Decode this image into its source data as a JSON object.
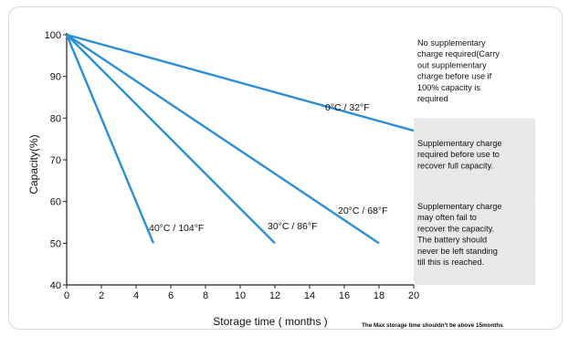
{
  "chart_data": {
    "type": "line",
    "title": "",
    "xlabel": "Storage time ( months )",
    "ylabel": "Capacity(%)",
    "xlim": [
      0,
      20
    ],
    "ylim": [
      40,
      100
    ],
    "xticks": [
      0,
      2,
      4,
      6,
      8,
      10,
      12,
      14,
      16,
      18,
      20
    ],
    "yticks": [
      40,
      50,
      60,
      70,
      80,
      90,
      100
    ],
    "grid": false,
    "series": [
      {
        "name": "0°C / 32°F",
        "color": "#2b8fd6",
        "x": [
          0,
          20
        ],
        "y": [
          100,
          77
        ]
      },
      {
        "name": "20°C / 68°F",
        "color": "#2b8fd6",
        "x": [
          0,
          18
        ],
        "y": [
          100,
          50
        ]
      },
      {
        "name": "30°C / 86°F",
        "color": "#2b8fd6",
        "x": [
          0,
          12
        ],
        "y": [
          100,
          50
        ]
      },
      {
        "name": "40°C / 104°F",
        "color": "#2b8fd6",
        "x": [
          0,
          5
        ],
        "y": [
          100,
          50
        ]
      }
    ],
    "zones": [
      {
        "y_from": 80,
        "y_to": 100,
        "color": "#ffffff",
        "text": "No supplementary charge required(Carry out supplementary charge before use if 100% capacity is required"
      },
      {
        "y_from": 60,
        "y_to": 80,
        "color": "#e8e8e8",
        "text": "Supplementary charge required before use to recover full capacity."
      },
      {
        "y_from": 40,
        "y_to": 60,
        "color": "#e8e8e8",
        "text": "Supplementary charge may often fail to recover the capacity. The battery should never be left standing till this is reached."
      }
    ],
    "annotations": [
      "The Max storage time shouldn't be above 15months"
    ]
  }
}
